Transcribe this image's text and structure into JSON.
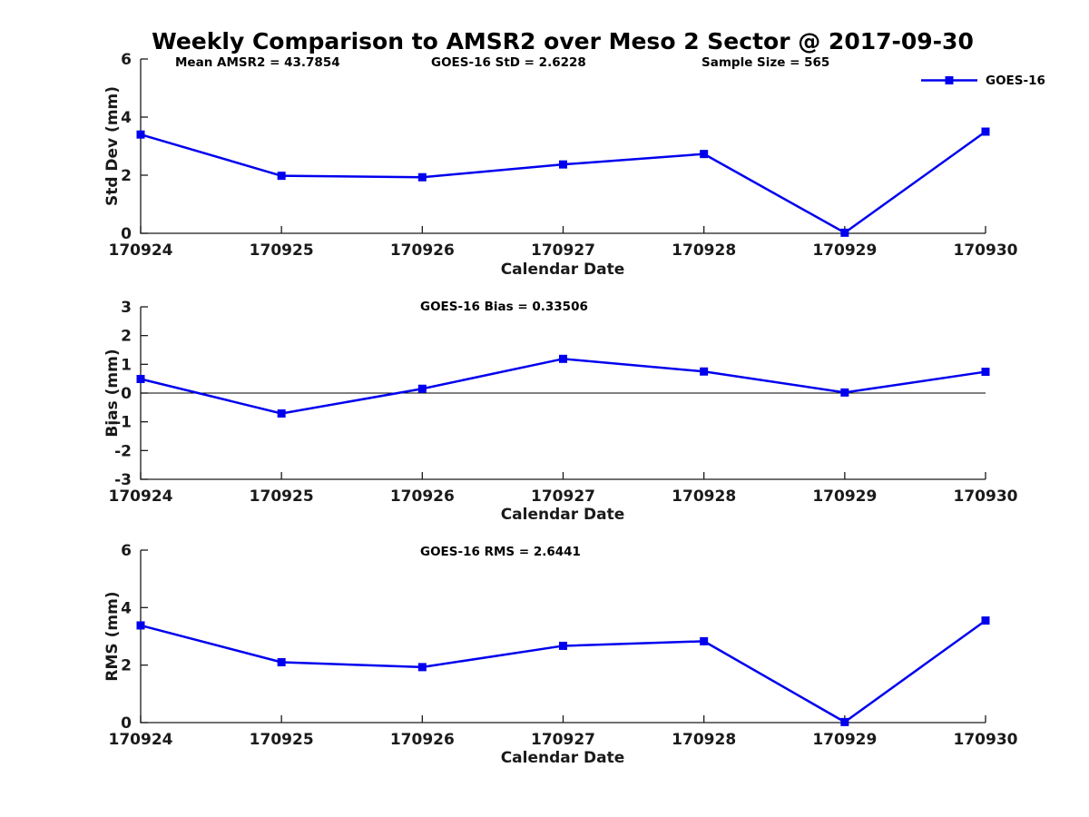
{
  "figure": {
    "title": "Weekly Comparison to AMSR2 over Meso 2 Sector @ 2017-09-30",
    "legend_label": "GOES-16",
    "colors": {
      "line": "#0000ee",
      "axis": "#1a1a1a",
      "text": "#000000",
      "background": "#ffffff"
    }
  },
  "chart_data": [
    {
      "id": "stddev",
      "type": "line",
      "categories": [
        "170924",
        "170925",
        "170926",
        "170927",
        "170928",
        "170929",
        "170930"
      ],
      "series": [
        {
          "name": "GOES-16",
          "values": [
            3.4,
            1.98,
            1.93,
            2.37,
            2.73,
            0.02,
            3.5
          ]
        }
      ],
      "ylabel": "Std Dev (mm)",
      "xlabel": "Calendar Date",
      "ylim": [
        0,
        6
      ],
      "yticks": [
        0,
        2,
        4,
        6
      ],
      "zero_line": false,
      "grid": false,
      "legend_position": "northeast",
      "annotations": [
        "Mean AMSR2 = 43.7854",
        "GOES-16 StD = 2.6228",
        "Sample Size = 565"
      ]
    },
    {
      "id": "bias",
      "type": "line",
      "categories": [
        "170924",
        "170925",
        "170926",
        "170927",
        "170928",
        "170929",
        "170930"
      ],
      "series": [
        {
          "name": "GOES-16",
          "values": [
            0.49,
            -0.71,
            0.15,
            1.19,
            0.75,
            0.02,
            0.74
          ]
        }
      ],
      "ylabel": "Bias (mm)",
      "xlabel": "Calendar Date",
      "ylim": [
        -3,
        3
      ],
      "yticks": [
        -3,
        -2,
        -1,
        0,
        1,
        2,
        3
      ],
      "zero_line": true,
      "grid": false,
      "annotations": [
        "GOES-16 Bias  = 0.33506"
      ]
    },
    {
      "id": "rms",
      "type": "line",
      "categories": [
        "170924",
        "170925",
        "170926",
        "170927",
        "170928",
        "170929",
        "170930"
      ],
      "series": [
        {
          "name": "GOES-16",
          "values": [
            3.38,
            2.1,
            1.93,
            2.67,
            2.83,
            0.02,
            3.55
          ]
        }
      ],
      "ylabel": "RMS (mm)",
      "xlabel": "Calendar Date",
      "ylim": [
        0,
        6
      ],
      "yticks": [
        0,
        2,
        4,
        6
      ],
      "zero_line": false,
      "grid": false,
      "annotations": [
        "GOES-16 RMS = 2.6441"
      ]
    }
  ]
}
